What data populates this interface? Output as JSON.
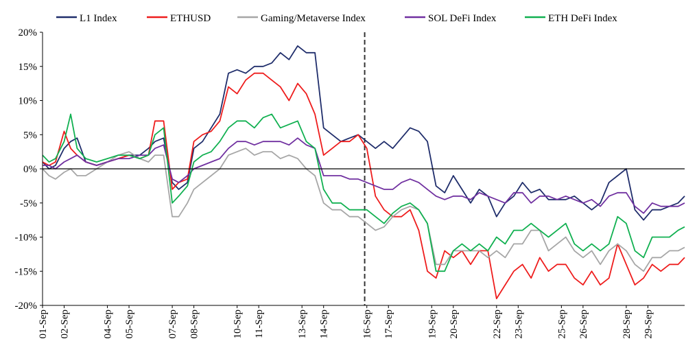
{
  "chart_data": {
    "type": "line",
    "title": "",
    "xlabel": "",
    "ylabel": "",
    "ylim": [
      -0.2,
      0.2
    ],
    "y_ticks": [
      "20%",
      "15%",
      "10%",
      "5%",
      "0%",
      "-5%",
      "-10%",
      "-15%",
      "-20%"
    ],
    "y_tick_values": [
      0.2,
      0.15,
      0.1,
      0.05,
      0.0,
      -0.05,
      -0.1,
      -0.15,
      -0.2
    ],
    "x_tick_labels": [
      "01-Sep",
      "02-Sep",
      "04-Sep",
      "05-Sep",
      "07-Sep",
      "08-Sep",
      "10-Sep",
      "11-Sep",
      "13-Sep",
      "14-Sep",
      "16-Sep",
      "17-Sep",
      "19-Sep",
      "20-Sep",
      "22-Sep",
      "23-Sep",
      "25-Sep",
      "26-Sep",
      "28-Sep",
      "29-Sep"
    ],
    "x_tick_days": [
      1,
      2,
      4,
      5,
      7,
      8,
      10,
      11,
      13,
      14,
      16,
      17,
      19,
      20,
      22,
      23,
      25,
      26,
      28,
      29
    ],
    "x_range_days": [
      1,
      30.7
    ],
    "vline_day": 15.9,
    "legend_position": "top",
    "x_days": [
      1.0,
      1.3,
      1.6,
      2.0,
      2.3,
      2.6,
      3.0,
      3.5,
      4.0,
      4.5,
      5.0,
      5.5,
      5.9,
      6.2,
      6.6,
      7.0,
      7.3,
      7.7,
      8.0,
      8.4,
      8.8,
      9.2,
      9.6,
      10.0,
      10.4,
      10.8,
      11.2,
      11.6,
      12.0,
      12.4,
      12.8,
      13.2,
      13.6,
      14.0,
      14.4,
      14.8,
      15.2,
      15.6,
      16.0,
      16.4,
      16.8,
      17.2,
      17.6,
      18.0,
      18.4,
      18.8,
      19.2,
      19.6,
      20.0,
      20.4,
      20.8,
      21.2,
      21.6,
      22.0,
      22.4,
      22.8,
      23.2,
      23.6,
      24.0,
      24.4,
      24.8,
      25.2,
      25.6,
      26.0,
      26.4,
      26.8,
      27.2,
      27.6,
      28.0,
      28.4,
      28.8,
      29.2,
      29.6,
      30.0,
      30.4,
      30.7
    ],
    "series": [
      {
        "name": "L1 Index",
        "color": "#1f2d6b",
        "values": [
          0.01,
          0.0,
          0.005,
          0.03,
          0.04,
          0.045,
          0.01,
          0.005,
          0.01,
          0.015,
          0.02,
          0.02,
          0.03,
          0.04,
          0.045,
          -0.02,
          -0.03,
          -0.02,
          0.03,
          0.04,
          0.06,
          0.08,
          0.14,
          0.145,
          0.14,
          0.15,
          0.15,
          0.155,
          0.17,
          0.16,
          0.18,
          0.17,
          0.17,
          0.06,
          0.05,
          0.04,
          0.045,
          0.05,
          0.04,
          0.03,
          0.04,
          0.03,
          0.045,
          0.06,
          0.055,
          0.04,
          -0.025,
          -0.035,
          -0.01,
          -0.03,
          -0.05,
          -0.03,
          -0.04,
          -0.07,
          -0.05,
          -0.04,
          -0.02,
          -0.035,
          -0.03,
          -0.045,
          -0.045,
          -0.045,
          -0.04,
          -0.05,
          -0.06,
          -0.05,
          -0.02,
          -0.01,
          0.0,
          -0.06,
          -0.075,
          -0.06,
          -0.06,
          -0.055,
          -0.05,
          -0.04
        ]
      },
      {
        "name": "ETHUSD",
        "color": "#ee1c1c",
        "values": [
          0.01,
          0.005,
          0.01,
          0.055,
          0.03,
          0.02,
          0.01,
          0.005,
          0.01,
          0.015,
          0.02,
          0.015,
          0.02,
          0.07,
          0.07,
          -0.03,
          -0.02,
          -0.015,
          0.04,
          0.05,
          0.055,
          0.07,
          0.12,
          0.11,
          0.13,
          0.14,
          0.14,
          0.13,
          0.12,
          0.1,
          0.125,
          0.11,
          0.08,
          0.02,
          0.03,
          0.04,
          0.04,
          0.05,
          0.03,
          -0.04,
          -0.06,
          -0.07,
          -0.07,
          -0.06,
          -0.09,
          -0.15,
          -0.16,
          -0.12,
          -0.13,
          -0.12,
          -0.14,
          -0.12,
          -0.12,
          -0.19,
          -0.17,
          -0.15,
          -0.14,
          -0.16,
          -0.13,
          -0.15,
          -0.14,
          -0.14,
          -0.16,
          -0.17,
          -0.15,
          -0.17,
          -0.16,
          -0.11,
          -0.14,
          -0.17,
          -0.16,
          -0.14,
          -0.15,
          -0.14,
          -0.14,
          -0.13
        ]
      },
      {
        "name": "Gaming/Metaverse Index",
        "color": "#a6a6a6",
        "values": [
          0.0,
          -0.01,
          -0.015,
          -0.005,
          0.0,
          -0.01,
          -0.01,
          0.0,
          0.01,
          0.02,
          0.025,
          0.015,
          0.01,
          0.02,
          0.02,
          -0.07,
          -0.07,
          -0.05,
          -0.03,
          -0.02,
          -0.01,
          0.0,
          0.02,
          0.025,
          0.03,
          0.02,
          0.025,
          0.025,
          0.015,
          0.02,
          0.015,
          0.0,
          -0.01,
          -0.05,
          -0.06,
          -0.06,
          -0.07,
          -0.07,
          -0.08,
          -0.09,
          -0.085,
          -0.07,
          -0.06,
          -0.055,
          -0.06,
          -0.08,
          -0.14,
          -0.14,
          -0.12,
          -0.12,
          -0.12,
          -0.12,
          -0.13,
          -0.12,
          -0.13,
          -0.11,
          -0.11,
          -0.09,
          -0.09,
          -0.12,
          -0.11,
          -0.1,
          -0.12,
          -0.13,
          -0.12,
          -0.14,
          -0.12,
          -0.11,
          -0.12,
          -0.14,
          -0.15,
          -0.13,
          -0.13,
          -0.12,
          -0.12,
          -0.115
        ]
      },
      {
        "name": "SOL DeFi Index",
        "color": "#7030a0",
        "values": [
          0.005,
          0.005,
          0.0,
          0.01,
          0.015,
          0.02,
          0.01,
          0.005,
          0.01,
          0.015,
          0.015,
          0.02,
          0.02,
          0.03,
          0.035,
          -0.015,
          -0.02,
          -0.01,
          0.0,
          0.005,
          0.01,
          0.015,
          0.03,
          0.04,
          0.04,
          0.035,
          0.04,
          0.04,
          0.04,
          0.035,
          0.045,
          0.035,
          0.03,
          -0.01,
          -0.01,
          -0.01,
          -0.015,
          -0.015,
          -0.02,
          -0.025,
          -0.03,
          -0.03,
          -0.02,
          -0.015,
          -0.02,
          -0.03,
          -0.04,
          -0.045,
          -0.04,
          -0.04,
          -0.045,
          -0.035,
          -0.04,
          -0.045,
          -0.05,
          -0.035,
          -0.035,
          -0.05,
          -0.04,
          -0.04,
          -0.045,
          -0.04,
          -0.045,
          -0.05,
          -0.045,
          -0.055,
          -0.04,
          -0.035,
          -0.035,
          -0.055,
          -0.065,
          -0.05,
          -0.055,
          -0.055,
          -0.055,
          -0.05
        ]
      },
      {
        "name": "ETH DeFi Index",
        "color": "#10b050",
        "values": [
          0.02,
          0.01,
          0.015,
          0.04,
          0.08,
          0.03,
          0.015,
          0.01,
          0.015,
          0.02,
          0.02,
          0.015,
          0.02,
          0.05,
          0.06,
          -0.05,
          -0.04,
          -0.025,
          0.01,
          0.02,
          0.025,
          0.04,
          0.06,
          0.07,
          0.07,
          0.06,
          0.075,
          0.08,
          0.06,
          0.065,
          0.07,
          0.04,
          0.03,
          -0.03,
          -0.05,
          -0.05,
          -0.06,
          -0.06,
          -0.06,
          -0.07,
          -0.08,
          -0.065,
          -0.055,
          -0.05,
          -0.06,
          -0.08,
          -0.15,
          -0.15,
          -0.12,
          -0.11,
          -0.12,
          -0.11,
          -0.12,
          -0.1,
          -0.11,
          -0.09,
          -0.09,
          -0.08,
          -0.09,
          -0.1,
          -0.09,
          -0.08,
          -0.11,
          -0.12,
          -0.11,
          -0.12,
          -0.11,
          -0.07,
          -0.08,
          -0.12,
          -0.13,
          -0.1,
          -0.1,
          -0.1,
          -0.09,
          -0.085
        ]
      }
    ]
  }
}
